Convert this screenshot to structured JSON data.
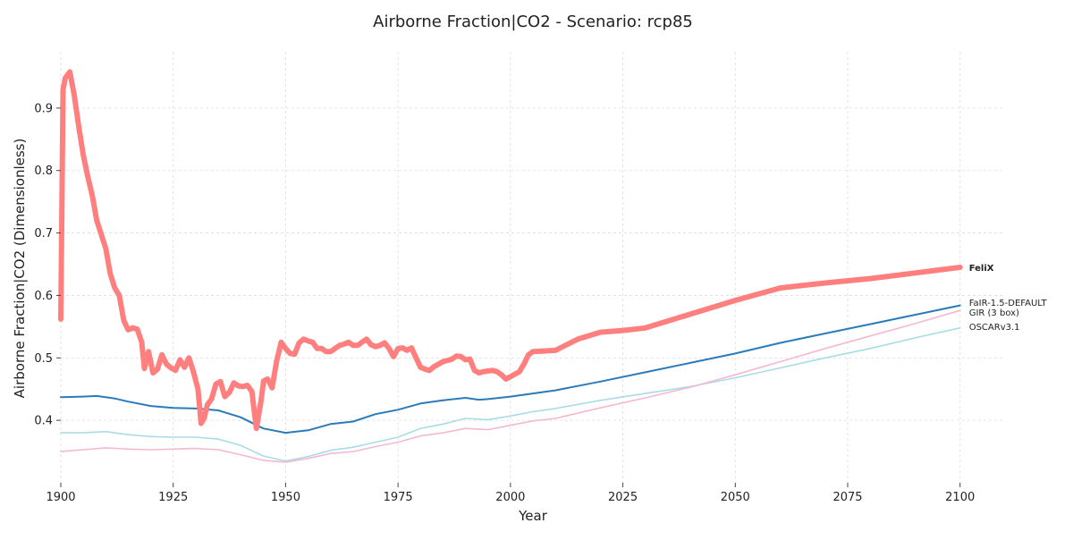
{
  "chart_data": {
    "type": "line",
    "title": "Airborne Fraction|CO2 - Scenario: rcp85",
    "xlabel": "Year",
    "ylabel": "Airborne Fraction|CO2 (Dimensionless)",
    "xlim": [
      1900,
      2110
    ],
    "ylim": [
      0.3,
      0.99
    ],
    "xticks": [
      1900,
      1925,
      1950,
      1975,
      2000,
      2025,
      2050,
      2075,
      2100
    ],
    "yticks": [
      0.4,
      0.5,
      0.6,
      0.7,
      0.8,
      0.9
    ],
    "xtick_labels": [
      "1900",
      "1925",
      "1950",
      "1975",
      "2000",
      "2025",
      "2050",
      "2075",
      "2100"
    ],
    "ytick_labels": [
      "0.4",
      "0.5",
      "0.6",
      "0.7",
      "0.8",
      "0.9"
    ],
    "grid": true,
    "legend": "labels at line ends",
    "series": [
      {
        "name": "FeliX",
        "color": "#ff7f7f",
        "emphasis": "bold",
        "x": [
          1900,
          1900.5,
          1901,
          1902,
          1903,
          1904,
          1905,
          1906,
          1907,
          1908,
          1910,
          1911,
          1912,
          1913,
          1914,
          1915,
          1916,
          1917,
          1918,
          1918.6,
          1919.5,
          1920.5,
          1921.5,
          1922.5,
          1923.5,
          1924.5,
          1925.5,
          1926.5,
          1927.5,
          1928.5,
          1929.5,
          1930.5,
          1931.2,
          1931.9,
          1932.6,
          1933.5,
          1934.5,
          1935.5,
          1936.5,
          1937.5,
          1938.5,
          1939.5,
          1940.5,
          1941.5,
          1942.5,
          1943.5,
          1944.5,
          1945.1,
          1946,
          1947,
          1948,
          1949,
          1950,
          1951,
          1952,
          1953,
          1954,
          1955,
          1956,
          1957,
          1958,
          1959,
          1960,
          1961,
          1962,
          1963,
          1964,
          1965,
          1966,
          1967,
          1968,
          1969,
          1970,
          1971,
          1972,
          1973,
          1974,
          1975,
          1976,
          1977,
          1978,
          1979,
          1980,
          1981,
          1982,
          1983,
          1984,
          1985,
          1986,
          1987,
          1988,
          1989,
          1990,
          1991,
          1992,
          1993,
          1994,
          1995,
          1996,
          1997,
          1998,
          1999,
          2000,
          2001,
          2002,
          2003,
          2004,
          2005,
          2010,
          2015,
          2020,
          2025,
          2030,
          2040,
          2050,
          2060,
          2070,
          2080,
          2090,
          2100
        ],
        "y": [
          0.562,
          0.93,
          0.948,
          0.958,
          0.92,
          0.87,
          0.825,
          0.79,
          0.76,
          0.72,
          0.675,
          0.635,
          0.612,
          0.6,
          0.56,
          0.545,
          0.548,
          0.546,
          0.525,
          0.483,
          0.51,
          0.476,
          0.482,
          0.505,
          0.49,
          0.484,
          0.48,
          0.497,
          0.485,
          0.5,
          0.478,
          0.45,
          0.395,
          0.404,
          0.425,
          0.434,
          0.458,
          0.462,
          0.438,
          0.445,
          0.46,
          0.455,
          0.454,
          0.456,
          0.446,
          0.387,
          0.43,
          0.463,
          0.466,
          0.452,
          0.495,
          0.525,
          0.515,
          0.507,
          0.506,
          0.524,
          0.53,
          0.527,
          0.525,
          0.515,
          0.515,
          0.51,
          0.51,
          0.515,
          0.52,
          0.522,
          0.525,
          0.52,
          0.52,
          0.525,
          0.53,
          0.521,
          0.518,
          0.52,
          0.524,
          0.515,
          0.502,
          0.515,
          0.516,
          0.512,
          0.516,
          0.5,
          0.485,
          0.482,
          0.48,
          0.486,
          0.49,
          0.494,
          0.496,
          0.498,
          0.503,
          0.502,
          0.497,
          0.498,
          0.48,
          0.476,
          0.478,
          0.479,
          0.48,
          0.478,
          0.473,
          0.466,
          0.47,
          0.474,
          0.478,
          0.49,
          0.505,
          0.51,
          0.512,
          0.53,
          0.541,
          0.544,
          0.548,
          0.57,
          0.592,
          0.612,
          0.62,
          0.627,
          0.636,
          0.645
        ]
      },
      {
        "name": "FaIR-1.5-DEFAULT",
        "color": "#2b7bba",
        "emphasis": "normal",
        "x": [
          1900,
          1905,
          1908,
          1912,
          1915,
          1920,
          1925,
          1930,
          1935,
          1940,
          1945,
          1950,
          1955,
          1960,
          1965,
          1970,
          1975,
          1980,
          1985,
          1990,
          1993,
          1995,
          2000,
          2005,
          2010,
          2020,
          2030,
          2040,
          2050,
          2060,
          2070,
          2080,
          2090,
          2100
        ],
        "y": [
          0.437,
          0.438,
          0.439,
          0.435,
          0.43,
          0.423,
          0.42,
          0.419,
          0.416,
          0.405,
          0.387,
          0.38,
          0.384,
          0.394,
          0.398,
          0.41,
          0.417,
          0.427,
          0.432,
          0.436,
          0.433,
          0.434,
          0.438,
          0.443,
          0.448,
          0.462,
          0.477,
          0.492,
          0.507,
          0.524,
          0.539,
          0.554,
          0.569,
          0.584
        ]
      },
      {
        "name": "GIR (3 box)",
        "color": "#f4b8d0",
        "emphasis": "normal",
        "x": [
          1900,
          1905,
          1910,
          1915,
          1920,
          1925,
          1930,
          1935,
          1940,
          1945,
          1950,
          1955,
          1960,
          1965,
          1970,
          1975,
          1980,
          1985,
          1990,
          1995,
          2000,
          2005,
          2010,
          2020,
          2030,
          2040,
          2050,
          2060,
          2070,
          2080,
          2090,
          2100
        ],
        "y": [
          0.35,
          0.353,
          0.356,
          0.354,
          0.353,
          0.354,
          0.355,
          0.353,
          0.345,
          0.336,
          0.333,
          0.339,
          0.347,
          0.35,
          0.358,
          0.365,
          0.375,
          0.38,
          0.387,
          0.385,
          0.392,
          0.399,
          0.403,
          0.42,
          0.436,
          0.453,
          0.473,
          0.494,
          0.515,
          0.535,
          0.555,
          0.576
        ]
      },
      {
        "name": "OSCARv3.1",
        "color": "#a8dce8",
        "emphasis": "normal",
        "x": [
          1900,
          1905,
          1910,
          1915,
          1920,
          1925,
          1930,
          1935,
          1940,
          1945,
          1950,
          1955,
          1960,
          1965,
          1970,
          1975,
          1980,
          1985,
          1990,
          1995,
          2000,
          2005,
          2010,
          2020,
          2030,
          2040,
          2050,
          2060,
          2070,
          2080,
          2090,
          2100
        ],
        "y": [
          0.38,
          0.38,
          0.382,
          0.377,
          0.374,
          0.373,
          0.373,
          0.37,
          0.36,
          0.343,
          0.335,
          0.342,
          0.352,
          0.357,
          0.365,
          0.373,
          0.387,
          0.394,
          0.403,
          0.401,
          0.407,
          0.414,
          0.419,
          0.432,
          0.443,
          0.454,
          0.468,
          0.484,
          0.5,
          0.515,
          0.532,
          0.548
        ]
      }
    ]
  }
}
